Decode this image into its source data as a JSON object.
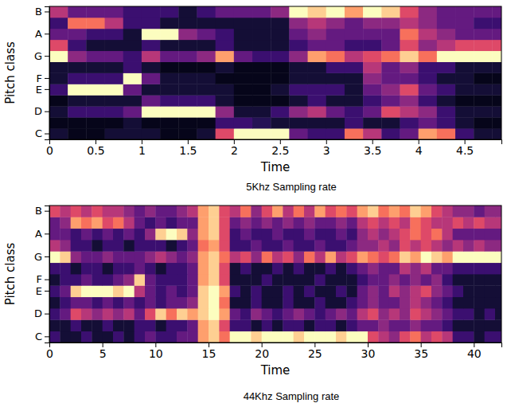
{
  "chart_data": [
    {
      "type": "heatmap",
      "title": "5Khz Sampling rate",
      "x_label": "Time",
      "y_label": "Pitch class",
      "color": "magma",
      "value_range": [
        0,
        1
      ],
      "categories": [
        "C",
        null,
        "D",
        null,
        "E",
        "F",
        null,
        "G",
        null,
        "A",
        null,
        "B"
      ],
      "bins": [
        0,
        0.2,
        0.4,
        0.6,
        0.8,
        1,
        1.2,
        1.4,
        1.6,
        1.8,
        2,
        2.2,
        2.4,
        2.6,
        2.8,
        3,
        3.2,
        3.4,
        3.6,
        3.8,
        4,
        4.2,
        4.4,
        4.6,
        4.8,
        4.9
      ],
      "xlim": [
        0,
        4.9
      ],
      "xticks": [
        0,
        0.5,
        1,
        1.5,
        2,
        2.5,
        3,
        3.5,
        4,
        4.5
      ],
      "cells": [
        [
          0.1,
          0.05,
          0.05,
          0.1,
          0.1,
          0.1,
          0.05,
          0.05,
          0.1,
          0.6,
          1,
          1,
          1,
          0.3,
          0.2,
          0.2,
          0.7,
          0.5,
          0.2,
          0.3,
          0.8,
          0.7,
          0.2,
          0.1,
          0.1
        ],
        [
          0.05,
          0.05,
          0.05,
          0.05,
          0.1,
          0.05,
          0.05,
          0.05,
          0.05,
          0.2,
          0.2,
          0.15,
          0.1,
          0.1,
          0.1,
          0.1,
          0.2,
          0.1,
          0.1,
          0.2,
          0.3,
          0.2,
          0.1,
          0.05,
          0.05
        ],
        [
          0.1,
          0.2,
          0.2,
          0.2,
          0.3,
          1,
          1,
          1,
          1,
          0.4,
          0.1,
          0.1,
          0.2,
          0.4,
          0.5,
          0.3,
          0.2,
          0.3,
          0.6,
          0.5,
          0.4,
          0.2,
          0.1,
          0.1,
          0.1
        ],
        [
          0.05,
          0.1,
          0.1,
          0.1,
          0.1,
          0.3,
          0.2,
          0.2,
          0.2,
          0.1,
          0.05,
          0.05,
          0.05,
          0.1,
          0.2,
          0.1,
          0.1,
          0.2,
          0.3,
          0.4,
          0.2,
          0.1,
          0.05,
          0.05,
          0.05
        ],
        [
          0.2,
          1,
          1,
          1,
          0.3,
          0.1,
          0.1,
          0.1,
          0.1,
          0.1,
          0.05,
          0.05,
          0.1,
          0.2,
          0.2,
          0.2,
          0.1,
          0.3,
          0.4,
          0.6,
          0.3,
          0.2,
          0.1,
          0.1,
          0.1
        ],
        [
          0.1,
          0.2,
          0.2,
          0.2,
          1,
          0.3,
          0.1,
          0.1,
          0.1,
          0.05,
          0.05,
          0.05,
          0.05,
          0.1,
          0.1,
          0.1,
          0.1,
          0.4,
          0.3,
          0.3,
          0.2,
          0.1,
          0.1,
          0.05,
          0.05
        ],
        [
          0.1,
          0.1,
          0.1,
          0.1,
          0.2,
          0.1,
          0.05,
          0.05,
          0.05,
          0.1,
          0.05,
          0.05,
          0.05,
          0.1,
          0.1,
          0.2,
          0.2,
          0.5,
          0.3,
          0.4,
          0.2,
          0.2,
          0.1,
          0.1,
          0.1
        ],
        [
          1,
          0.4,
          0.3,
          0.3,
          0.2,
          0.5,
          0.3,
          0.3,
          0.4,
          0.8,
          0.3,
          0.2,
          0.2,
          0.4,
          0.8,
          0.7,
          0.5,
          0.6,
          0.7,
          0.9,
          0.7,
          1,
          1,
          1,
          1
        ],
        [
          0.6,
          0.2,
          0.1,
          0.1,
          0.1,
          0.2,
          0.1,
          0.1,
          0.1,
          0.2,
          0.1,
          0.1,
          0.1,
          0.2,
          0.3,
          0.3,
          0.2,
          0.2,
          0.3,
          0.6,
          0.4,
          0.5,
          0.6,
          0.6,
          0.6
        ],
        [
          0.3,
          0.3,
          0.2,
          0.2,
          0.1,
          1,
          1,
          0.4,
          0.3,
          0.2,
          0.1,
          0.1,
          0.1,
          0.3,
          0.4,
          0.3,
          0.3,
          0.3,
          0.3,
          0.7,
          0.5,
          0.4,
          0.3,
          0.3,
          0.3
        ],
        [
          0.2,
          0.7,
          0.7,
          0.5,
          0.2,
          0.2,
          0.1,
          0.1,
          0.1,
          0.1,
          0.1,
          0.1,
          0.1,
          0.4,
          0.5,
          0.4,
          0.3,
          0.4,
          0.4,
          0.5,
          0.4,
          0.3,
          0.3,
          0.2,
          0.2
        ],
        [
          0.5,
          0.3,
          0.3,
          0.3,
          0.2,
          0.2,
          0.2,
          0.1,
          0.2,
          0.3,
          0.3,
          0.3,
          0.4,
          1,
          0.9,
          1,
          0.8,
          1,
          0.9,
          0.6,
          0.4,
          0.3,
          0.3,
          0.3,
          0.3
        ]
      ]
    },
    {
      "type": "heatmap",
      "title": "44Khz Sampling rate",
      "x_label": "Time",
      "y_label": "Pitch class",
      "color": "magma",
      "value_range": [
        0,
        1
      ],
      "categories": [
        "C",
        null,
        "D",
        null,
        "E",
        "F",
        null,
        "G",
        null,
        "A",
        null,
        "B"
      ],
      "bins": [
        0,
        1,
        2,
        3,
        4,
        5,
        6,
        7,
        8,
        9,
        10,
        11,
        12,
        13,
        14,
        15,
        16,
        17,
        18,
        19,
        20,
        21,
        22,
        23,
        24,
        25,
        26,
        27,
        28,
        29,
        30,
        31,
        32,
        33,
        34,
        35,
        36,
        37,
        38,
        39,
        40,
        41,
        42,
        42.6
      ],
      "xlim": [
        0,
        42.6
      ],
      "xticks": [
        0,
        5,
        10,
        15,
        20,
        25,
        30,
        35,
        40
      ],
      "cells": [
        [
          0.2,
          0.1,
          0.1,
          0.2,
          0.1,
          0.1,
          0.2,
          0.1,
          0.2,
          0.3,
          0.2,
          0.2,
          0.3,
          0.3,
          0.8,
          0.9,
          0.7,
          1,
          1,
          0.9,
          1,
          1,
          1,
          0.9,
          1,
          1,
          1,
          0.9,
          1,
          1,
          0.6,
          0.5,
          0.4,
          0.6,
          0.7,
          0.5,
          0.6,
          0.5,
          0.2,
          0.2,
          0.1,
          0.2,
          0.2
        ],
        [
          0.1,
          0.1,
          0.2,
          0.1,
          0.1,
          0.2,
          0.1,
          0.1,
          0.2,
          0.2,
          0.1,
          0.2,
          0.2,
          0.3,
          0.8,
          0.9,
          0.6,
          0.2,
          0.2,
          0.1,
          0.2,
          0.1,
          0.2,
          0.2,
          0.1,
          0.2,
          0.2,
          0.1,
          0.2,
          0.3,
          0.3,
          0.4,
          0.3,
          0.3,
          0.4,
          0.3,
          0.3,
          0.2,
          0.1,
          0.1,
          0.1,
          0.1,
          0.1
        ],
        [
          0.2,
          0.3,
          0.6,
          0.5,
          0.4,
          0.5,
          0.4,
          0.5,
          0.3,
          0.6,
          0.9,
          0.7,
          0.9,
          0.8,
          0.9,
          1,
          0.8,
          0.3,
          0.2,
          0.4,
          0.3,
          0.2,
          0.3,
          0.4,
          0.3,
          0.2,
          0.3,
          0.4,
          0.3,
          0.5,
          0.6,
          0.4,
          0.5,
          0.4,
          0.6,
          0.5,
          0.4,
          0.3,
          0.2,
          0.2,
          0.1,
          0.2,
          0.1
        ],
        [
          0.1,
          0.2,
          0.3,
          0.3,
          0.2,
          0.3,
          0.2,
          0.3,
          0.2,
          0.3,
          0.2,
          0.3,
          0.3,
          0.4,
          0.9,
          1,
          0.7,
          0.1,
          0.1,
          0.2,
          0.1,
          0.1,
          0.2,
          0.1,
          0.1,
          0.2,
          0.1,
          0.1,
          0.2,
          0.3,
          0.4,
          0.3,
          0.3,
          0.4,
          0.5,
          0.4,
          0.3,
          0.2,
          0.1,
          0.1,
          0.1,
          0.1,
          0.1
        ],
        [
          0.2,
          0.3,
          0.9,
          1,
          1,
          1,
          0.9,
          1,
          0.5,
          0.3,
          0.2,
          0.3,
          0.2,
          0.3,
          0.9,
          1,
          0.8,
          0.2,
          0.1,
          0.2,
          0.1,
          0.1,
          0.2,
          0.1,
          0.2,
          0.1,
          0.1,
          0.2,
          0.1,
          0.3,
          0.4,
          0.3,
          0.5,
          0.4,
          0.5,
          0.6,
          0.4,
          0.3,
          0.2,
          0.1,
          0.1,
          0.1,
          0.1
        ],
        [
          0.1,
          0.2,
          0.2,
          0.3,
          0.2,
          0.2,
          0.3,
          0.4,
          0.9,
          0.3,
          0.2,
          0.2,
          0.2,
          0.3,
          0.8,
          0.9,
          0.6,
          0.1,
          0.1,
          0.1,
          0.2,
          0.1,
          0.1,
          0.1,
          0.1,
          0.2,
          0.1,
          0.1,
          0.1,
          0.2,
          0.3,
          0.3,
          0.4,
          0.3,
          0.4,
          0.3,
          0.4,
          0.2,
          0.1,
          0.1,
          0.1,
          0.1,
          0.1
        ],
        [
          0.2,
          0.2,
          0.1,
          0.2,
          0.2,
          0.1,
          0.2,
          0.2,
          0.3,
          0.2,
          0.1,
          0.2,
          0.2,
          0.3,
          0.8,
          0.9,
          0.6,
          0.1,
          0.2,
          0.1,
          0.1,
          0.2,
          0.1,
          0.2,
          0.1,
          0.1,
          0.2,
          0.1,
          0.2,
          0.3,
          0.4,
          0.3,
          0.3,
          0.5,
          0.4,
          0.5,
          0.3,
          0.3,
          0.2,
          0.2,
          0.2,
          0.2,
          0.2
        ],
        [
          1,
          0.9,
          0.4,
          0.3,
          0.3,
          0.4,
          0.3,
          0.3,
          0.3,
          0.4,
          0.5,
          0.4,
          0.3,
          0.4,
          0.8,
          0.9,
          0.7,
          0.5,
          0.6,
          0.4,
          0.7,
          0.5,
          0.6,
          0.4,
          0.7,
          0.5,
          0.8,
          0.5,
          0.6,
          0.8,
          0.7,
          0.6,
          0.7,
          0.9,
          0.8,
          1,
          0.9,
          0.8,
          1,
          1,
          1,
          1,
          1
        ],
        [
          0.5,
          0.4,
          0.2,
          0.2,
          0.1,
          0.2,
          0.2,
          0.1,
          0.2,
          0.2,
          0.2,
          0.1,
          0.2,
          0.3,
          0.7,
          0.8,
          0.6,
          0.2,
          0.2,
          0.3,
          0.2,
          0.2,
          0.3,
          0.2,
          0.2,
          0.3,
          0.2,
          0.2,
          0.3,
          0.4,
          0.4,
          0.5,
          0.4,
          0.6,
          0.5,
          0.6,
          0.5,
          0.4,
          0.5,
          0.4,
          0.5,
          0.4,
          0.4
        ],
        [
          0.3,
          0.3,
          0.2,
          0.3,
          0.2,
          0.3,
          0.2,
          0.3,
          0.2,
          0.4,
          0.9,
          1,
          0.9,
          0.4,
          0.8,
          0.9,
          0.6,
          0.2,
          0.3,
          0.2,
          0.2,
          0.3,
          0.2,
          0.2,
          0.3,
          0.2,
          0.2,
          0.3,
          0.2,
          0.4,
          0.5,
          0.4,
          0.5,
          0.6,
          0.7,
          0.6,
          0.7,
          0.5,
          0.3,
          0.3,
          0.3,
          0.3,
          0.3
        ],
        [
          0.3,
          0.4,
          0.8,
          0.7,
          0.8,
          0.6,
          0.7,
          0.5,
          0.3,
          0.2,
          0.3,
          0.2,
          0.3,
          0.3,
          0.8,
          0.9,
          0.6,
          0.3,
          0.4,
          0.3,
          0.4,
          0.3,
          0.4,
          0.3,
          0.4,
          0.3,
          0.3,
          0.4,
          0.3,
          0.5,
          0.6,
          0.5,
          0.6,
          0.5,
          0.7,
          0.6,
          0.5,
          0.5,
          0.6,
          0.5,
          0.6,
          0.5,
          0.5
        ],
        [
          0.6,
          0.5,
          0.6,
          0.5,
          0.6,
          0.5,
          0.5,
          0.4,
          0.3,
          0.4,
          0.3,
          0.3,
          0.4,
          0.5,
          0.8,
          0.9,
          0.6,
          0.5,
          0.7,
          0.4,
          0.6,
          0.8,
          0.5,
          0.7,
          0.5,
          0.8,
          0.6,
          0.7,
          0.6,
          0.8,
          0.9,
          0.7,
          0.8,
          0.7,
          0.9,
          0.8,
          0.6,
          0.5,
          0.4,
          0.4,
          0.3,
          0.4,
          0.4
        ]
      ]
    }
  ]
}
